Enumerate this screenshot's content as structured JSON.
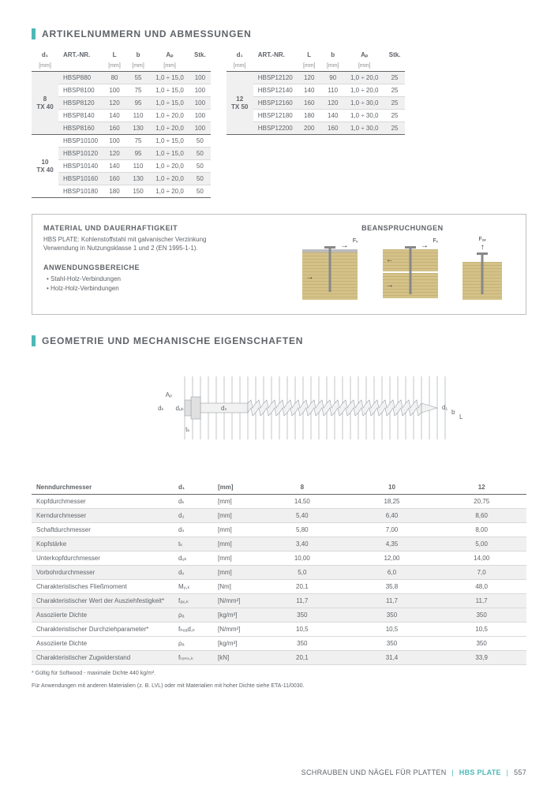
{
  "sections": {
    "dimensions_title": "ARTIKELNUMMERN UND ABMESSUNGEN",
    "geometry_title": "GEOMETRIE UND MECHANISCHE EIGENSCHAFTEN"
  },
  "dim_table_headers": {
    "d1": "d₁",
    "art": "ART.-NR.",
    "L": "L",
    "b": "b",
    "Ap": "Aₚ",
    "stk": "Stk.",
    "unit_mm": "[mm]"
  },
  "dim_left": {
    "groups": [
      {
        "d1": "8",
        "tx": "TX 40",
        "rows": [
          {
            "art": "HBSP880",
            "L": "80",
            "b": "55",
            "ap": "1,0 ÷ 15,0",
            "stk": "100",
            "alt": true
          },
          {
            "art": "HBSP8100",
            "L": "100",
            "b": "75",
            "ap": "1,0 ÷ 15,0",
            "stk": "100"
          },
          {
            "art": "HBSP8120",
            "L": "120",
            "b": "95",
            "ap": "1,0 ÷ 15,0",
            "stk": "100",
            "alt": true
          },
          {
            "art": "HBSP8140",
            "L": "140",
            "b": "110",
            "ap": "1,0 ÷ 20,0",
            "stk": "100"
          },
          {
            "art": "HBSP8160",
            "L": "160",
            "b": "130",
            "ap": "1,0 ÷ 20,0",
            "stk": "100",
            "alt": true
          }
        ]
      },
      {
        "d1": "10",
        "tx": "TX 40",
        "rows": [
          {
            "art": "HBSP10100",
            "L": "100",
            "b": "75",
            "ap": "1,0 ÷ 15,0",
            "stk": "50"
          },
          {
            "art": "HBSP10120",
            "L": "120",
            "b": "95",
            "ap": "1,0 ÷ 15,0",
            "stk": "50",
            "alt": true
          },
          {
            "art": "HBSP10140",
            "L": "140",
            "b": "110",
            "ap": "1,0 ÷ 20,0",
            "stk": "50"
          },
          {
            "art": "HBSP10160",
            "L": "160",
            "b": "130",
            "ap": "1,0 ÷ 20,0",
            "stk": "50",
            "alt": true
          },
          {
            "art": "HBSP10180",
            "L": "180",
            "b": "150",
            "ap": "1,0 ÷ 20,0",
            "stk": "50"
          }
        ]
      }
    ]
  },
  "dim_right": {
    "groups": [
      {
        "d1": "12",
        "tx": "TX 50",
        "rows": [
          {
            "art": "HBSP12120",
            "L": "120",
            "b": "90",
            "ap": "1,0 ÷ 20,0",
            "stk": "25",
            "alt": true
          },
          {
            "art": "HBSP12140",
            "L": "140",
            "b": "110",
            "ap": "1,0 ÷ 20,0",
            "stk": "25"
          },
          {
            "art": "HBSP12160",
            "L": "160",
            "b": "120",
            "ap": "1,0 ÷ 30,0",
            "stk": "25",
            "alt": true
          },
          {
            "art": "HBSP12180",
            "L": "180",
            "b": "140",
            "ap": "1,0 ÷ 30,0",
            "stk": "25"
          },
          {
            "art": "HBSP12200",
            "L": "200",
            "b": "160",
            "ap": "1,0 ÷ 30,0",
            "stk": "25",
            "alt": true
          }
        ]
      }
    ]
  },
  "info": {
    "material_h": "MATERIAL UND DAUERHAFTIGKEIT",
    "material_p": "HBS PLATE: Kohlenstoffstahl mit galvanischer Verzinkung\nVerwendung in Nutzungsklasse 1 und 2 (EN 1995-1-1).",
    "anw_h": "ANWENDUNGSBEREICHE",
    "anw_items": [
      "Stahl-Holz-Verbindungen",
      "Holz-Holz-Verbindungen"
    ],
    "bean_h": "BEANSPRUCHUNGEN",
    "labels": {
      "fv": "Fᵥ",
      "fax": "Fₐₓ"
    }
  },
  "geom_svg": {
    "labels": {
      "Ap": "Aₚ",
      "dk": "dₖ",
      "duk": "dᵤₖ",
      "tk": "tₖ",
      "d1": "d₁",
      "b": "b",
      "L": "L",
      "ds": "dₛ"
    },
    "colors": {
      "stroke": "#9aa0a6",
      "fill": "#e8e8e8",
      "text": "#5f6368"
    }
  },
  "props": {
    "rows": [
      {
        "name": "Nenndurchmesser",
        "sym": "d₁",
        "unit": "[mm]",
        "v": [
          "8",
          "10",
          "12"
        ],
        "head": true
      },
      {
        "name": "Kopfdurchmesser",
        "sym": "dₖ",
        "unit": "[mm]",
        "v": [
          "14,50",
          "18,25",
          "20,75"
        ]
      },
      {
        "name": "Kerndurchmesser",
        "sym": "d₂",
        "unit": "[mm]",
        "v": [
          "5,40",
          "6,40",
          "8,60"
        ],
        "alt": true
      },
      {
        "name": "Schaftdurchmesser",
        "sym": "dₛ",
        "unit": "[mm]",
        "v": [
          "5,80",
          "7,00",
          "8,00"
        ]
      },
      {
        "name": "Kopfstärke",
        "sym": "tₖ",
        "unit": "[mm]",
        "v": [
          "3,40",
          "4,35",
          "5,00"
        ],
        "alt": true
      },
      {
        "name": "Unterkopfdurchmesser",
        "sym": "dᵤₖ",
        "unit": "[mm]",
        "v": [
          "10,00",
          "12,00",
          "14,00"
        ]
      },
      {
        "name": "Vorbohrdurchmesser",
        "sym": "dᵥ",
        "unit": "[mm]",
        "v": [
          "5,0",
          "6,0",
          "7,0"
        ],
        "alt": true
      },
      {
        "name": "Charakteristisches Fließmoment",
        "sym": "Mᵧ,ₖ",
        "unit": "[Nm]",
        "v": [
          "20,1",
          "35,8",
          "48,0"
        ]
      },
      {
        "name": "Charakteristischer Wert der Ausziehfestigkeit*",
        "sym": "fₐₓ,ₖ",
        "unit": "[N/mm²]",
        "v": [
          "11,7",
          "11,7",
          "11,7"
        ],
        "alt": true
      },
      {
        "name": "Assoziierte Dichte",
        "sym": "ρₐ",
        "unit": "[kg/m³]",
        "v": [
          "350",
          "350",
          "350"
        ],
        "alt": true
      },
      {
        "name": "Charakteristischer Durchziehparameter*",
        "sym": "fₕₑₐd,ₖ",
        "unit": "[N/mm²]",
        "v": [
          "10,5",
          "10,5",
          "10,5"
        ]
      },
      {
        "name": "Assoziierte Dichte",
        "sym": "ρₐ",
        "unit": "[kg/m³]",
        "v": [
          "350",
          "350",
          "350"
        ]
      },
      {
        "name": "Charakteristischer Zugwiderstand",
        "sym": "fₜₑₙₛ,ₖ",
        "unit": "[kN]",
        "v": [
          "20,1",
          "31,4",
          "33,9"
        ],
        "alt": true
      }
    ]
  },
  "footnotes": [
    "* Gültig für Softwood - maximale Dichte 440 kg/m³.",
    "Für Anwendungen mit anderen Materialien (z. B. LVL) oder mit Materialien mit hoher Dichte siehe ETA-11/0030."
  ],
  "footer": {
    "left": "SCHRAUBEN UND NÄGEL FÜR PLATTEN",
    "brand": "HBS PLATE",
    "page": "557"
  },
  "colors": {
    "accent": "#4db8b8",
    "text": "#5f6368",
    "border": "#d9d9d9",
    "row_alt": "#f0f0f0"
  }
}
